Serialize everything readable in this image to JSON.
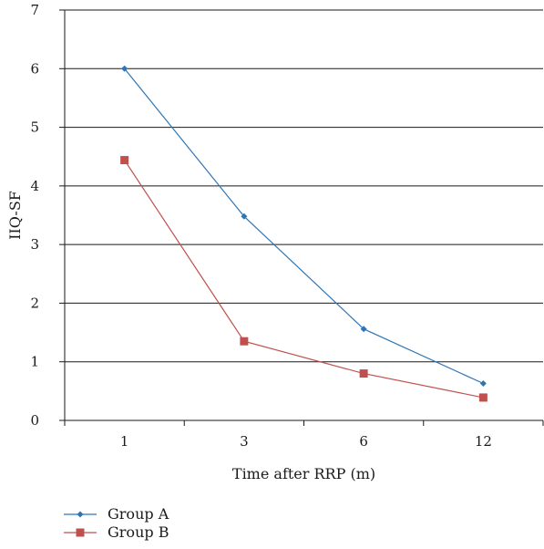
{
  "chart_data": {
    "type": "line",
    "title": "",
    "xlabel": "Time after RRP (m)",
    "ylabel": "IIQ-SF",
    "categories": [
      "1",
      "3",
      "6",
      "12"
    ],
    "ylim": [
      0,
      7
    ],
    "yticks": [
      "0",
      "1",
      "2",
      "3",
      "4",
      "5",
      "6",
      "7"
    ],
    "grid": true,
    "legend_position": "bottom-left",
    "series": [
      {
        "name": "Group A",
        "values": [
          6.0,
          3.48,
          1.56,
          0.63
        ],
        "color": "#2e75b6",
        "marker": "diamond"
      },
      {
        "name": "Group B",
        "values": [
          4.44,
          1.35,
          0.8,
          0.39
        ],
        "color": "#c0504d",
        "marker": "square"
      }
    ]
  }
}
